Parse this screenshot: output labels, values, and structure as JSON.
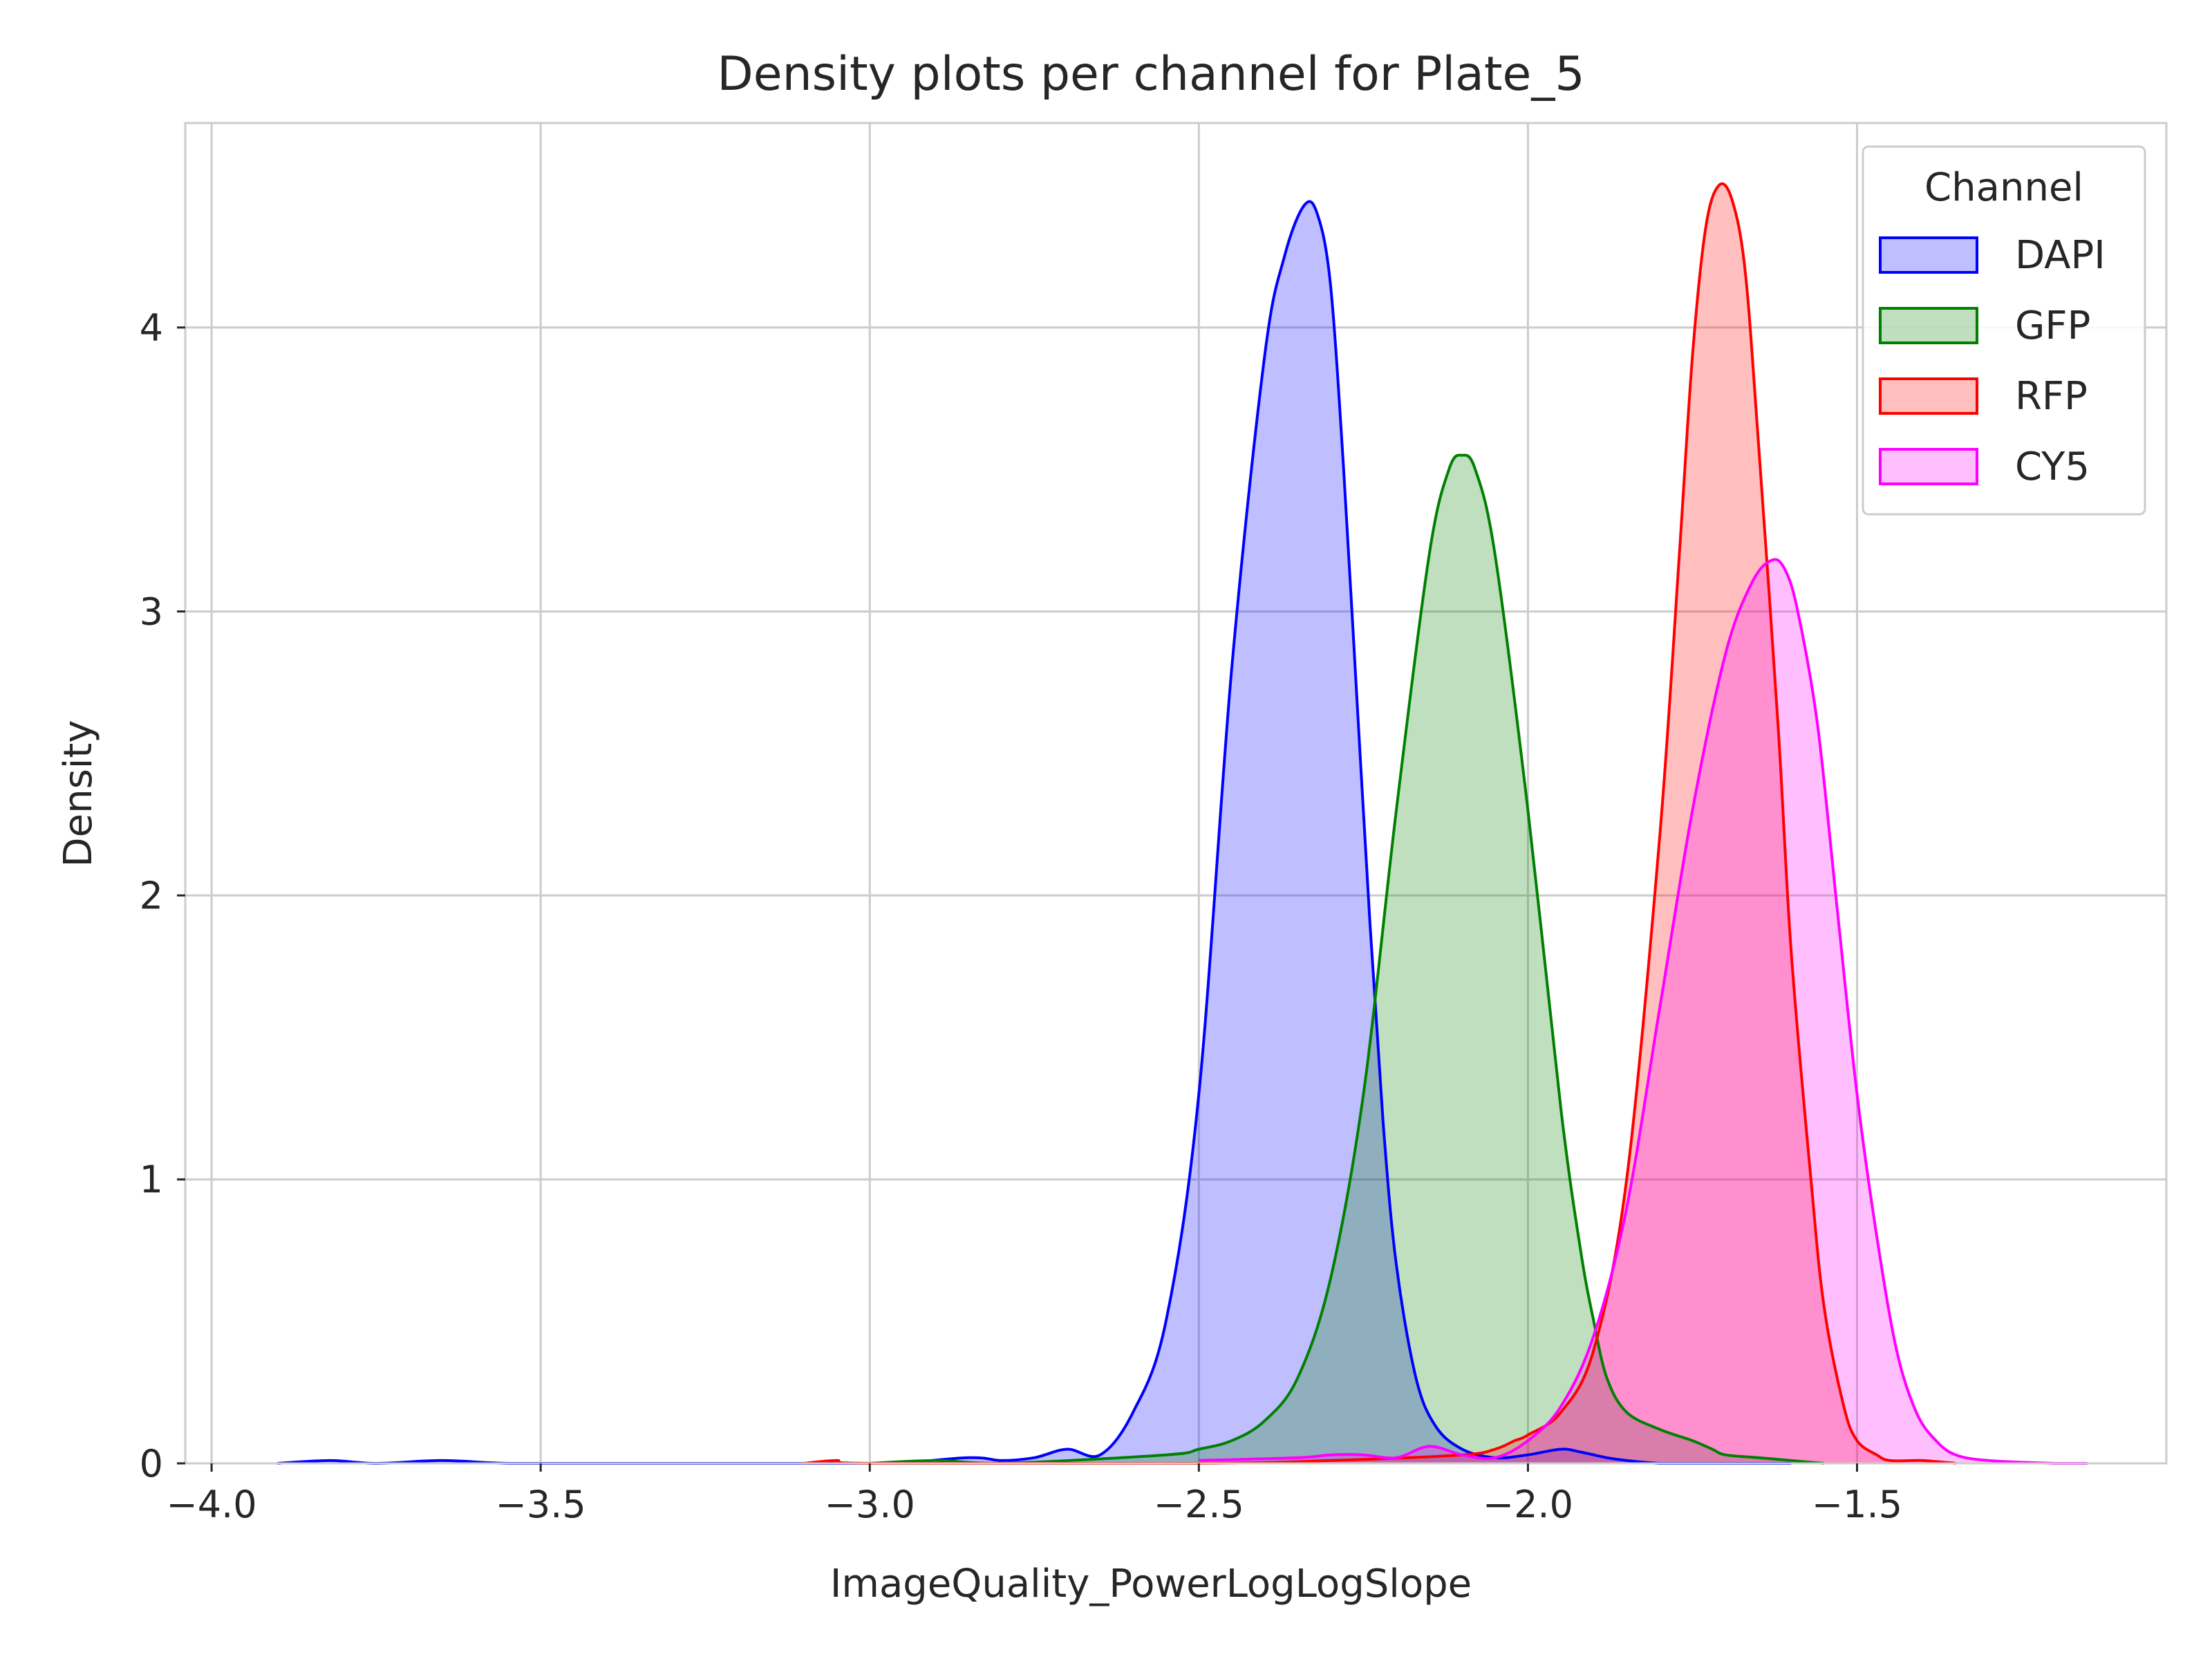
{
  "chart_data": {
    "type": "area",
    "title": "Density plots per channel for Plate_5",
    "xlabel": "ImageQuality_PowerLogLogSlope",
    "ylabel": "Density",
    "xlim": [
      -4.04,
      -1.03
    ],
    "ylim": [
      0,
      4.72
    ],
    "xticks": [
      -4.0,
      -3.5,
      -3.0,
      -2.5,
      -2.0,
      -1.5
    ],
    "xtick_labels": [
      "−4.0",
      "−3.5",
      "−3.0",
      "−2.5",
      "−2.0",
      "−1.5"
    ],
    "yticks": [
      0,
      1,
      2,
      3,
      4
    ],
    "ytick_labels": [
      "0",
      "1",
      "2",
      "3",
      "4"
    ],
    "grid": true,
    "legend": {
      "title": "Channel",
      "position": "top-right"
    },
    "series": [
      {
        "name": "DAPI",
        "color": "#0000ff",
        "fill": "#0000ff",
        "fill_opacity": 0.25,
        "x": [
          -3.9,
          -3.82,
          -3.75,
          -3.65,
          -3.55,
          -3.4,
          -3.0,
          -2.85,
          -2.8,
          -2.75,
          -2.7,
          -2.65,
          -2.6,
          -2.55,
          -2.5,
          -2.45,
          -2.4,
          -2.37,
          -2.34,
          -2.32,
          -2.3,
          -2.28,
          -2.26,
          -2.24,
          -2.22,
          -2.2,
          -2.17,
          -2.14,
          -2.1,
          -2.05,
          -2.0,
          -1.95,
          -1.92,
          -1.88,
          -1.85,
          -1.8,
          -1.75,
          -1.7,
          -1.6
        ],
        "y": [
          0,
          0.01,
          0,
          0.01,
          0,
          0,
          0,
          0.02,
          0.01,
          0.02,
          0.05,
          0.03,
          0.18,
          0.5,
          1.3,
          2.8,
          3.9,
          4.25,
          4.43,
          4.4,
          4.15,
          3.5,
          2.7,
          1.9,
          1.2,
          0.7,
          0.3,
          0.13,
          0.05,
          0.02,
          0.03,
          0.05,
          0.04,
          0.02,
          0.01,
          0,
          0,
          0,
          0
        ]
      },
      {
        "name": "GFP",
        "color": "#008000",
        "fill": "#008000",
        "fill_opacity": 0.25,
        "x": [
          -3.0,
          -2.9,
          -2.8,
          -2.55,
          -2.5,
          -2.45,
          -2.4,
          -2.35,
          -2.3,
          -2.25,
          -2.2,
          -2.15,
          -2.12,
          -2.1,
          -2.08,
          -2.05,
          -2.0,
          -1.95,
          -1.92,
          -1.9,
          -1.88,
          -1.85,
          -1.8,
          -1.75,
          -1.72,
          -1.7,
          -1.65,
          -1.6,
          -1.55
        ],
        "y": [
          0,
          0.01,
          0,
          0.03,
          0.05,
          0.08,
          0.15,
          0.3,
          0.65,
          1.3,
          2.3,
          3.2,
          3.5,
          3.55,
          3.5,
          3.2,
          2.3,
          1.25,
          0.75,
          0.5,
          0.3,
          0.18,
          0.12,
          0.08,
          0.05,
          0.03,
          0.02,
          0.01,
          0
        ]
      },
      {
        "name": "RFP",
        "color": "#ff0000",
        "fill": "#ff0000",
        "fill_opacity": 0.25,
        "x": [
          -3.1,
          -3.05,
          -3.0,
          -2.5,
          -2.3,
          -2.1,
          -2.05,
          -2.02,
          -2.0,
          -1.95,
          -1.9,
          -1.85,
          -1.8,
          -1.77,
          -1.75,
          -1.73,
          -1.71,
          -1.69,
          -1.67,
          -1.65,
          -1.62,
          -1.6,
          -1.57,
          -1.55,
          -1.52,
          -1.5,
          -1.47,
          -1.45,
          -1.4,
          -1.35
        ],
        "y": [
          0,
          0.01,
          0,
          0,
          0.01,
          0.03,
          0.05,
          0.08,
          0.1,
          0.18,
          0.4,
          1.0,
          2.2,
          3.2,
          3.9,
          4.35,
          4.5,
          4.45,
          4.2,
          3.6,
          2.6,
          1.8,
          1.0,
          0.55,
          0.2,
          0.08,
          0.03,
          0.01,
          0.01,
          0
        ]
      },
      {
        "name": "CY5",
        "color": "#ff00ff",
        "fill": "#ff00ff",
        "fill_opacity": 0.25,
        "x": [
          -2.5,
          -2.35,
          -2.3,
          -2.25,
          -2.2,
          -2.15,
          -2.1,
          -2.05,
          -2.0,
          -1.95,
          -1.9,
          -1.85,
          -1.8,
          -1.75,
          -1.7,
          -1.66,
          -1.63,
          -1.61,
          -1.59,
          -1.56,
          -1.53,
          -1.5,
          -1.47,
          -1.44,
          -1.41,
          -1.38,
          -1.35,
          -1.3,
          -1.2,
          -1.15
        ],
        "y": [
          0.01,
          0.02,
          0.03,
          0.03,
          0.02,
          0.06,
          0.03,
          0.02,
          0.08,
          0.2,
          0.45,
          0.9,
          1.6,
          2.3,
          2.85,
          3.1,
          3.18,
          3.15,
          3.0,
          2.6,
          1.95,
          1.3,
          0.8,
          0.4,
          0.18,
          0.08,
          0.03,
          0.01,
          0,
          0
        ]
      }
    ]
  }
}
